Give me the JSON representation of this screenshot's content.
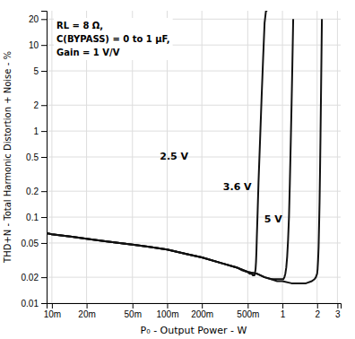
{
  "chart_data": {
    "type": "line",
    "log": true,
    "grid": true,
    "xlabel": "P₀ - Output Power - W",
    "ylabel": "THD+N - Total Harmonic Distortion + Noise - %",
    "annotations": [
      "RL = 8 Ω,",
      "C(BYPASS) = 0 to 1 μF,",
      "Gain = 1 V/V"
    ],
    "xlim": [
      0.009,
      3.2
    ],
    "ylim": [
      0.01,
      25
    ],
    "xticks": [
      {
        "value": 0.01,
        "label": "10m"
      },
      {
        "value": 0.02,
        "label": "20m"
      },
      {
        "value": 0.05,
        "label": "50m"
      },
      {
        "value": 0.1,
        "label": "100m"
      },
      {
        "value": 0.2,
        "label": "200m"
      },
      {
        "value": 0.5,
        "label": "500m"
      },
      1,
      2,
      3
    ],
    "yticks": [
      0.01,
      0.02,
      0.05,
      0.1,
      0.2,
      0.5,
      1,
      2,
      5,
      10,
      20
    ],
    "series": [
      {
        "name": "2.5 V",
        "color": "#111111",
        "x": [
          0.009,
          0.01,
          0.015,
          0.02,
          0.03,
          0.05,
          0.07,
          0.1,
          0.15,
          0.2,
          0.3,
          0.4,
          0.45,
          0.5,
          0.52,
          0.54,
          0.555,
          0.563,
          0.568,
          0.572,
          0.576,
          0.58,
          0.585,
          0.59,
          0.595,
          0.6,
          0.61,
          0.62,
          0.64,
          0.66,
          0.68,
          0.7,
          0.72,
          0.74
        ],
        "values": [
          0.065,
          0.063,
          0.059,
          0.056,
          0.052,
          0.048,
          0.045,
          0.042,
          0.037,
          0.034,
          0.029,
          0.026,
          0.024,
          0.023,
          0.022,
          0.022,
          0.021,
          0.021,
          0.021,
          0.021,
          0.022,
          0.023,
          0.025,
          0.03,
          0.04,
          0.06,
          0.12,
          0.25,
          0.8,
          2.5,
          7.0,
          18.0,
          25.0,
          25.0
        ]
      },
      {
        "name": "3.6 V",
        "color": "#111111",
        "x": [
          0.009,
          0.01,
          0.015,
          0.02,
          0.03,
          0.05,
          0.07,
          0.1,
          0.15,
          0.2,
          0.3,
          0.4,
          0.5,
          0.6,
          0.7,
          0.8,
          0.9,
          0.95,
          1.0,
          1.02,
          1.04,
          1.06,
          1.08,
          1.1,
          1.12,
          1.14,
          1.16,
          1.18,
          1.2,
          1.22,
          1.24
        ],
        "values": [
          0.065,
          0.063,
          0.059,
          0.056,
          0.052,
          0.048,
          0.045,
          0.042,
          0.037,
          0.034,
          0.029,
          0.026,
          0.023,
          0.022,
          0.02,
          0.019,
          0.019,
          0.019,
          0.019,
          0.019,
          0.02,
          0.022,
          0.026,
          0.035,
          0.055,
          0.1,
          0.25,
          0.7,
          2.0,
          6.0,
          20.0
        ]
      },
      {
        "name": "5 V",
        "color": "#111111",
        "x": [
          0.009,
          0.01,
          0.015,
          0.02,
          0.03,
          0.05,
          0.07,
          0.1,
          0.15,
          0.2,
          0.3,
          0.4,
          0.5,
          0.6,
          0.7,
          0.8,
          0.9,
          1.0,
          1.2,
          1.4,
          1.6,
          1.8,
          1.9,
          1.95,
          2.0,
          2.02,
          2.04,
          2.06,
          2.08,
          2.1,
          2.12,
          2.14,
          2.16,
          2.18,
          2.2
        ],
        "values": [
          0.065,
          0.063,
          0.059,
          0.056,
          0.052,
          0.048,
          0.045,
          0.042,
          0.037,
          0.034,
          0.029,
          0.026,
          0.023,
          0.022,
          0.02,
          0.019,
          0.018,
          0.018,
          0.017,
          0.017,
          0.017,
          0.018,
          0.019,
          0.02,
          0.022,
          0.025,
          0.032,
          0.045,
          0.08,
          0.15,
          0.35,
          0.9,
          2.5,
          7.0,
          20.0
        ]
      }
    ]
  }
}
